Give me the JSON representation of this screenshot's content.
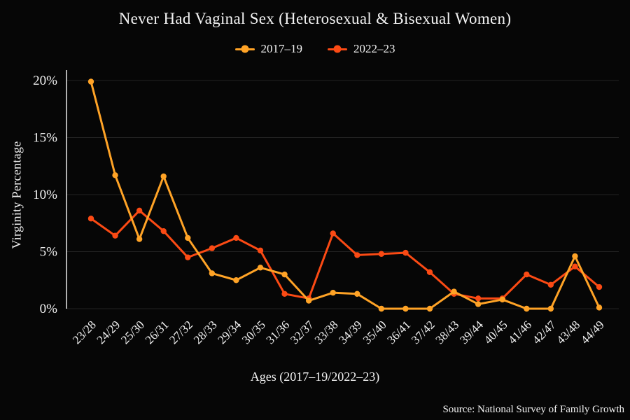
{
  "chart_data": {
    "type": "line",
    "title": "Never Had Vaginal Sex (Heterosexual & Bisexual Women)",
    "xlabel": "Ages (2017–19/2022–23)",
    "ylabel": "Virginity Percentage",
    "source": "Source: National Survey of Family Growth",
    "background": "#060606",
    "grid": true,
    "legend_position": "top",
    "ylim": [
      0,
      21
    ],
    "yticks": [
      0,
      5,
      10,
      15,
      20
    ],
    "ytick_labels": [
      "0%",
      "5%",
      "10%",
      "15%",
      "20%"
    ],
    "categories": [
      "23/28",
      "24/29",
      "25/30",
      "26/31",
      "27/32",
      "28/33",
      "29/34",
      "30/35",
      "31/36",
      "32/37",
      "33/38",
      "34/39",
      "35/40",
      "36/41",
      "37/42",
      "38/43",
      "39/44",
      "40/45",
      "41/46",
      "42/47",
      "43/48",
      "44/49"
    ],
    "series": [
      {
        "name": "2017–19",
        "color": "#FFA326",
        "values": [
          19.9,
          11.7,
          6.1,
          11.6,
          6.2,
          3.1,
          2.5,
          3.6,
          3.0,
          0.7,
          1.4,
          1.3,
          0.0,
          0.0,
          0.0,
          1.5,
          0.4,
          0.8,
          0.0,
          0.0,
          4.6,
          0.1
        ]
      },
      {
        "name": "2022–23",
        "color": "#FB4A14",
        "values": [
          7.9,
          6.4,
          8.6,
          6.8,
          4.5,
          5.3,
          6.2,
          5.1,
          1.3,
          0.9,
          6.6,
          4.7,
          4.8,
          4.9,
          3.2,
          1.3,
          0.9,
          0.9,
          3.0,
          2.1,
          3.7,
          1.9
        ]
      }
    ]
  }
}
